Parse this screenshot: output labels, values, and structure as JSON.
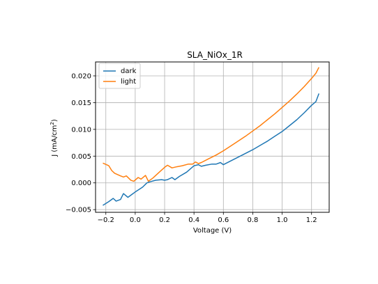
{
  "chart_data": {
    "type": "line",
    "title": "SLA_NiOx_1R",
    "xlabel": "Voltage (V)",
    "ylabel_main": "J (mA/cm",
    "ylabel_sup": "2",
    "ylabel_end": ")",
    "xlim": [
      -0.27,
      1.32
    ],
    "ylim": [
      -0.0055,
      0.0226
    ],
    "xticks": [
      -0.2,
      0.0,
      0.2,
      0.4,
      0.6,
      0.8,
      1.0,
      1.2
    ],
    "xtick_labels": [
      "−0.2",
      "0.0",
      "0.2",
      "0.4",
      "0.6",
      "0.8",
      "1.0",
      "1.2"
    ],
    "yticks": [
      -0.005,
      0.0,
      0.005,
      0.01,
      0.015,
      0.02
    ],
    "ytick_labels": [
      "−0.005",
      "0.000",
      "0.005",
      "0.010",
      "0.015",
      "0.020"
    ],
    "grid": true,
    "legend_position": "top-left",
    "series": [
      {
        "name": "dark",
        "color": "#1f77b4",
        "x": [
          -0.22,
          -0.18,
          -0.15,
          -0.13,
          -0.1,
          -0.08,
          -0.05,
          -0.02,
          0.0,
          0.05,
          0.08,
          0.1,
          0.14,
          0.18,
          0.2,
          0.22,
          0.25,
          0.27,
          0.3,
          0.35,
          0.4,
          0.43,
          0.45,
          0.48,
          0.52,
          0.55,
          0.58,
          0.6,
          0.65,
          0.7,
          0.75,
          0.8,
          0.85,
          0.9,
          0.95,
          1.0,
          1.05,
          1.1,
          1.15,
          1.2,
          1.23,
          1.25
        ],
        "y": [
          -0.0042,
          -0.0035,
          -0.0029,
          -0.0034,
          -0.0031,
          -0.002,
          -0.0027,
          -0.0021,
          -0.0017,
          -0.0008,
          0.0,
          0.0002,
          0.0005,
          0.0006,
          0.0005,
          0.0006,
          0.001,
          0.0006,
          0.0012,
          0.002,
          0.0032,
          0.0034,
          0.0031,
          0.0033,
          0.0035,
          0.0035,
          0.0038,
          0.0034,
          0.0041,
          0.0048,
          0.0055,
          0.0062,
          0.007,
          0.0078,
          0.0087,
          0.0096,
          0.0107,
          0.0118,
          0.0131,
          0.0145,
          0.0152,
          0.0167
        ]
      },
      {
        "name": "light",
        "color": "#ff7f0e",
        "x": [
          -0.22,
          -0.18,
          -0.16,
          -0.14,
          -0.1,
          -0.08,
          -0.06,
          -0.03,
          -0.01,
          0.02,
          0.04,
          0.07,
          0.09,
          0.12,
          0.16,
          0.2,
          0.22,
          0.25,
          0.28,
          0.32,
          0.36,
          0.39,
          0.41,
          0.43,
          0.45,
          0.5,
          0.55,
          0.6,
          0.65,
          0.7,
          0.75,
          0.8,
          0.85,
          0.9,
          0.95,
          1.0,
          1.05,
          1.1,
          1.15,
          1.2,
          1.23,
          1.25
        ],
        "y": [
          0.0037,
          0.0032,
          0.0023,
          0.0018,
          0.0013,
          0.0011,
          0.0013,
          0.0005,
          0.0003,
          0.001,
          0.0007,
          0.0014,
          0.0003,
          0.0009,
          0.0019,
          0.0029,
          0.0033,
          0.0028,
          0.003,
          0.0032,
          0.0035,
          0.0035,
          0.0039,
          0.0036,
          0.0038,
          0.0045,
          0.0052,
          0.006,
          0.0069,
          0.0078,
          0.0087,
          0.0097,
          0.0107,
          0.0118,
          0.0129,
          0.0141,
          0.0153,
          0.0166,
          0.018,
          0.0195,
          0.0205,
          0.0216
        ]
      }
    ]
  }
}
